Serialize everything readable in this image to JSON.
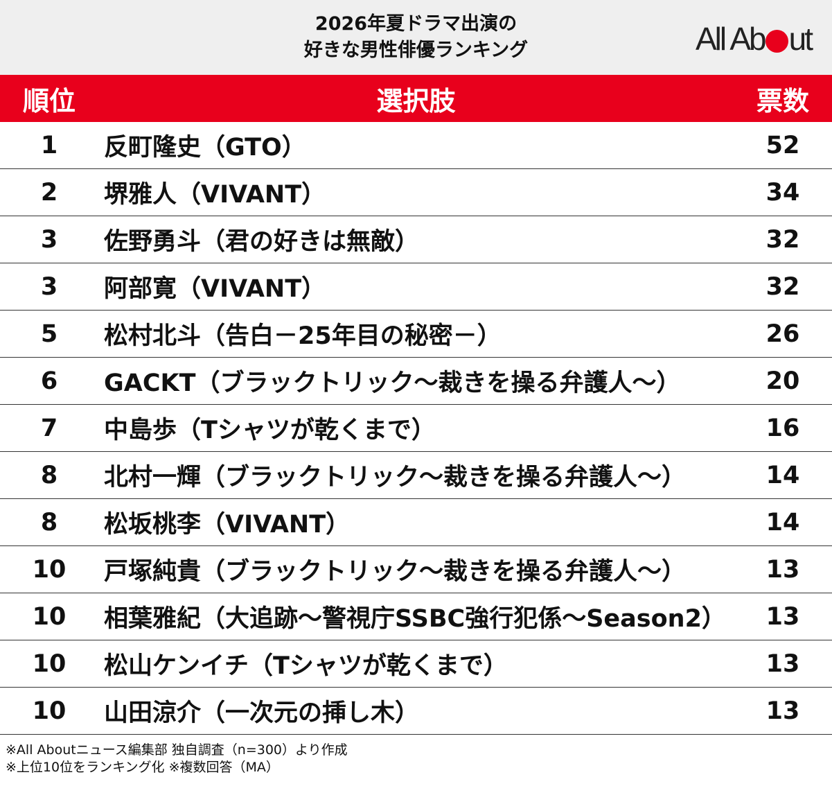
{
  "title": {
    "line1": "2026年夏ドラマ出演の",
    "line2": "好きな男性俳優ランキング"
  },
  "logo": {
    "text_left": "All Ab",
    "text_right": "ut",
    "dot_color": "#e8001c"
  },
  "colors": {
    "accent": "#e8001c",
    "header_bg": "#efefef"
  },
  "table": {
    "headers": {
      "rank": "順位",
      "choice": "選択肢",
      "votes": "票数"
    },
    "rows": [
      {
        "rank": "1",
        "choice": "反町隆史（GTO）",
        "votes": "52"
      },
      {
        "rank": "2",
        "choice": "堺雅人（VIVANT）",
        "votes": "34"
      },
      {
        "rank": "3",
        "choice": "佐野勇斗（君の好きは無敵）",
        "votes": "32"
      },
      {
        "rank": "3",
        "choice": "阿部寛（VIVANT）",
        "votes": "32"
      },
      {
        "rank": "5",
        "choice": "松村北斗（告白－25年目の秘密－）",
        "votes": "26"
      },
      {
        "rank": "6",
        "choice": "GACKT（ブラックトリック～裁きを操る弁護人～）",
        "votes": "20"
      },
      {
        "rank": "7",
        "choice": "中島歩（Tシャツが乾くまで）",
        "votes": "16"
      },
      {
        "rank": "8",
        "choice": "北村一輝（ブラックトリック～裁きを操る弁護人～）",
        "votes": "14"
      },
      {
        "rank": "8",
        "choice": "松坂桃李（VIVANT）",
        "votes": "14"
      },
      {
        "rank": "10",
        "choice": "戸塚純貴（ブラックトリック～裁きを操る弁護人～）",
        "votes": "13"
      },
      {
        "rank": "10",
        "choice": "相葉雅紀（大追跡～警視庁SSBC強行犯係～Season2）",
        "votes": "13"
      },
      {
        "rank": "10",
        "choice": "松山ケンイチ（Tシャツが乾くまで）",
        "votes": "13"
      },
      {
        "rank": "10",
        "choice": "山田涼介（一次元の挿し木）",
        "votes": "13"
      }
    ]
  },
  "notes": {
    "line1": "※All Aboutニュース編集部 独自調査（n=300）より作成",
    "line2": "※上位10位をランキング化 ※複数回答（MA）"
  }
}
